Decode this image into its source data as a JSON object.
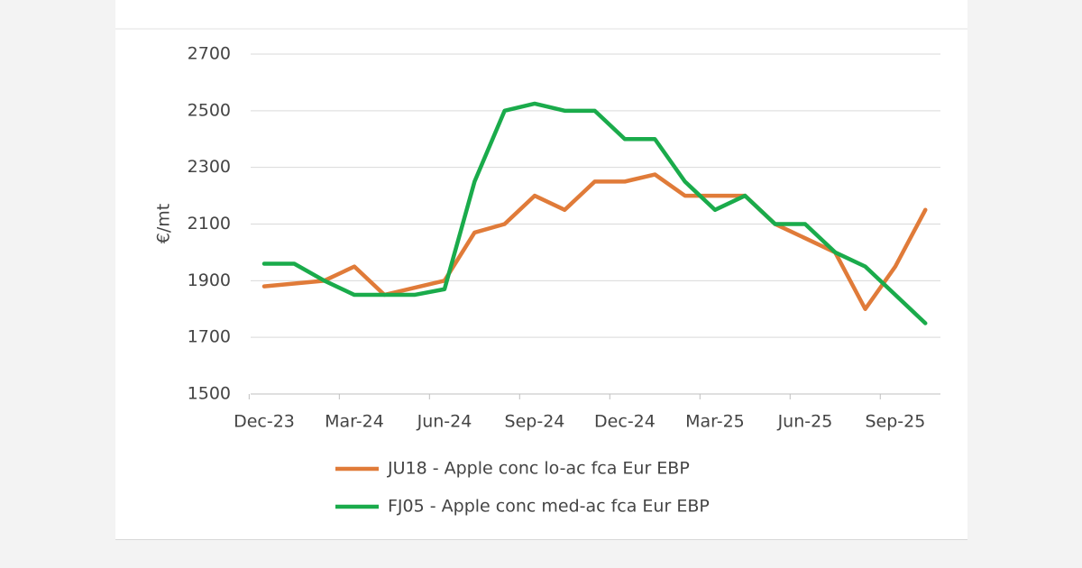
{
  "chart_data": {
    "type": "line",
    "y_label": "€/mt",
    "categories": [
      "Dec-23",
      null,
      null,
      "Mar-24",
      null,
      null,
      "Jun-24",
      null,
      null,
      "Sep-24",
      null,
      null,
      "Dec-24",
      null,
      null,
      "Mar-25",
      null,
      null,
      "Jun-25",
      null,
      null,
      "Sep-25",
      null
    ],
    "series": [
      {
        "name": "JU18 - Apple conc lo-ac fca Eur EBP",
        "color": "#e07b39",
        "values": [
          1880,
          1890,
          1900,
          1950,
          1850,
          1875,
          1900,
          2070,
          2100,
          2200,
          2150,
          2250,
          2250,
          2275,
          2200,
          2200,
          2200,
          2100,
          2050,
          2000,
          1800,
          1950,
          2150
        ]
      },
      {
        "name": "FJ05 - Apple conc med-ac fca Eur EBP",
        "color": "#1aab4b",
        "values": [
          1960,
          1960,
          1900,
          1850,
          1850,
          1850,
          1870,
          2250,
          2500,
          2525,
          2500,
          2500,
          2400,
          2400,
          2250,
          2150,
          2200,
          2100,
          2100,
          2000,
          1950,
          1850,
          1750
        ]
      }
    ],
    "ylim": [
      1500,
      2700
    ],
    "yticks": [
      1500,
      1700,
      1900,
      2100,
      2300,
      2500,
      2700
    ],
    "grid": true
  }
}
